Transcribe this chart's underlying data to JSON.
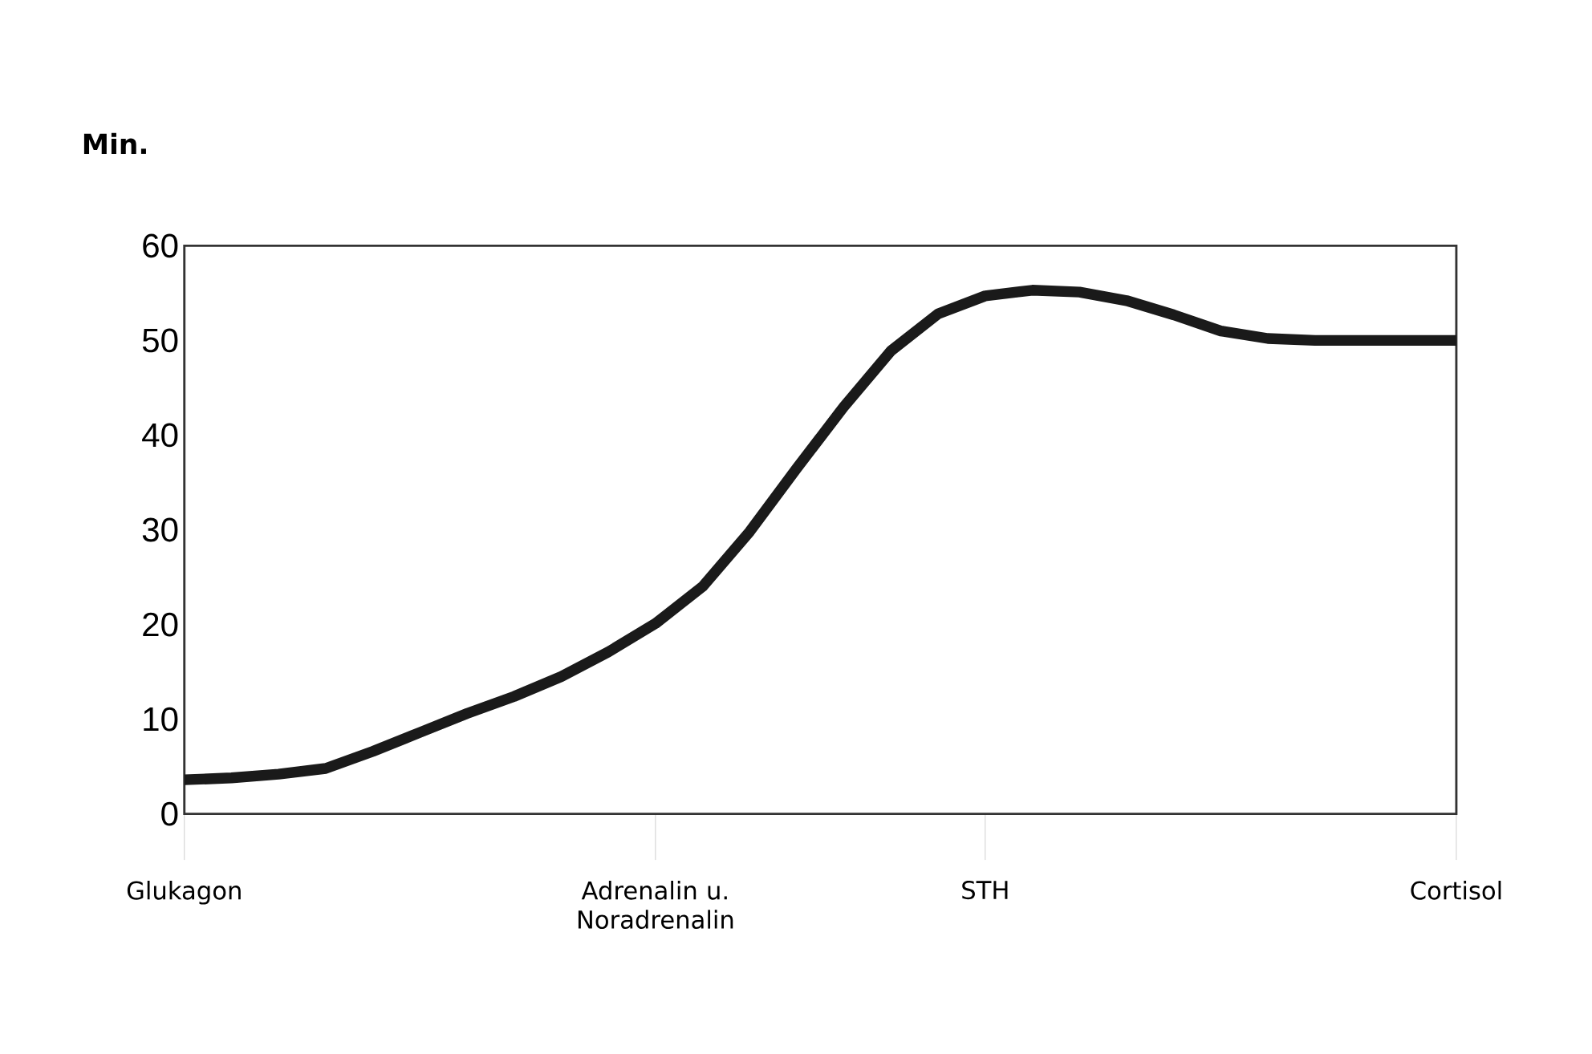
{
  "chart_data": {
    "type": "line",
    "ylabel": "**Min.**",
    "color": "#1a1a1a",
    "marker": "none",
    "categories": [
      "Glukagon",
      null,
      null,
      null,
      null,
      null,
      null,
      null,
      null,
      null,
      "Adrenalin u. Noradrenalin",
      null,
      null,
      null,
      null,
      null,
      null,
      "STH",
      null,
      null,
      null,
      null,
      null,
      null,
      null,
      null,
      null,
      "Cortisol"
    ],
    "values": [
      3.6,
      3.8,
      4.2,
      4.8,
      6.6,
      8.6,
      10.6,
      12.4,
      14.5,
      17.1,
      20.1,
      24.0,
      29.8,
      36.5,
      43.0,
      48.9,
      52.8,
      54.7,
      55.3,
      55.1,
      54.2,
      52.7,
      51.0,
      50.2,
      50,
      50,
      50,
      50
    ],
    "ylim": [
      0,
      60
    ],
    "yticks": [
      0,
      10,
      20,
      30,
      40,
      50,
      60
    ]
  }
}
